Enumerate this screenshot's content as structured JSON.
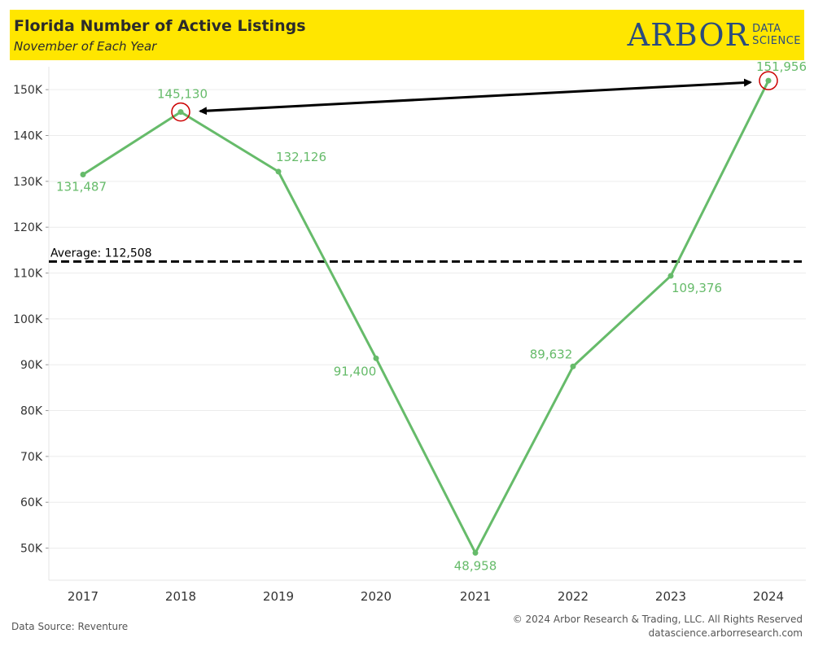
{
  "header": {
    "title": "Florida Number of Active Listings",
    "subtitle": "November of Each Year",
    "logo_main": "ARBOR",
    "logo_sub_top": "DATA",
    "logo_sub_bottom": "SCIENCE",
    "background_color": "#ffe600"
  },
  "chart_data": {
    "type": "line",
    "title": "Florida Number of Active Listings",
    "subtitle": "November of Each Year",
    "x": [
      "2017",
      "2018",
      "2019",
      "2020",
      "2021",
      "2022",
      "2023",
      "2024"
    ],
    "values": [
      131487,
      145130,
      132126,
      91400,
      48958,
      89632,
      109376,
      151956
    ],
    "data_labels": [
      "131,487",
      "145,130",
      "132,126",
      "91,400",
      "48,958",
      "89,632",
      "109,376",
      "151,956"
    ],
    "y_ticks": [
      50000,
      60000,
      70000,
      80000,
      90000,
      100000,
      110000,
      120000,
      130000,
      140000,
      150000
    ],
    "y_tick_labels": [
      "50K",
      "60K",
      "70K",
      "80K",
      "90K",
      "100K",
      "110K",
      "120K",
      "130K",
      "140K",
      "150K"
    ],
    "ylim": [
      43000,
      155000
    ],
    "xlabel": "",
    "ylabel": "",
    "grid": true,
    "line_color": "#66bb6a",
    "average": {
      "value": 112508,
      "label": "Average: 112,508"
    },
    "highlights": [
      "2018",
      "2024"
    ],
    "highlight_color": "#cc0000",
    "arrow": {
      "from": "2024",
      "to": "2018"
    }
  },
  "footer": {
    "source": "Data Source: Reventure",
    "copyright": "© 2024 Arbor Research & Trading, LLC. All Rights Reserved",
    "website": "datascience.arborresearch.com"
  }
}
